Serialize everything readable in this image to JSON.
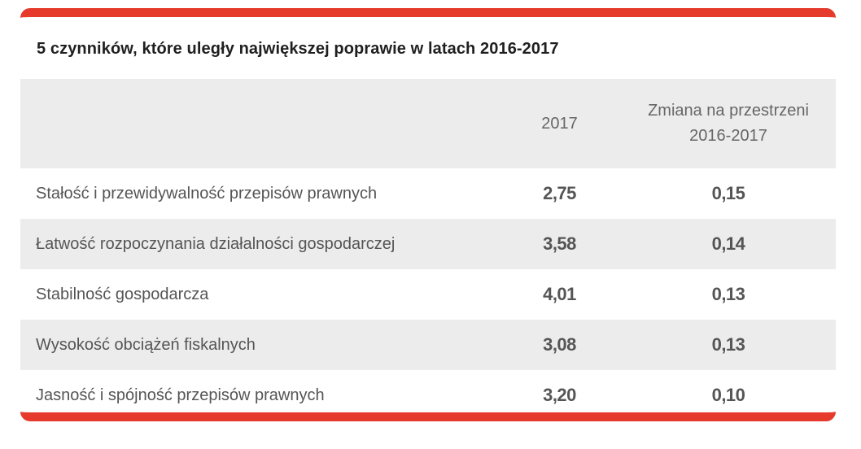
{
  "title": "5 czynników, które uległy największej poprawie w latach 2016-2017",
  "colors": {
    "accent": "#e53a2c",
    "row_shade": "#ececec",
    "text": "#555555"
  },
  "table": {
    "headers": {
      "year": "2017",
      "change_line1": "Zmiana na przestrzeni",
      "change_line2": "2016-2017"
    },
    "rows": [
      {
        "label": "Stałość i przewidywalność przepisów prawnych",
        "value_2017": "2,75",
        "change": "0,15"
      },
      {
        "label": "Łatwość rozpoczynania działalności gospodarczej",
        "value_2017": "3,58",
        "change": "0,14"
      },
      {
        "label": "Stabilność gospodarcza",
        "value_2017": "4,01",
        "change": "0,13"
      },
      {
        "label": "Wysokość obciążeń fiskalnych",
        "value_2017": "3,08",
        "change": "0,13"
      },
      {
        "label": "Jasność i spójność przepisów prawnych",
        "value_2017": "3,20",
        "change": "0,10"
      }
    ]
  }
}
